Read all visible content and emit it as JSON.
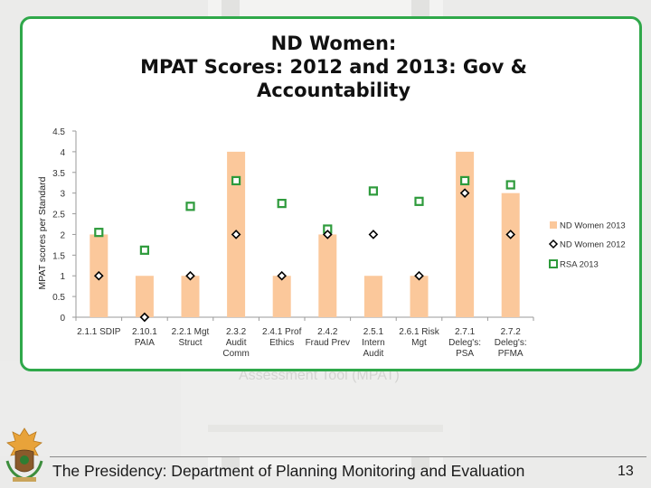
{
  "slide": {
    "footer": "The Presidency: Department of Planning Monitoring and Evaluation",
    "page_number": "13",
    "background_text": "Assessment Tool (MPAT)"
  },
  "colors": {
    "bar": "#fbc89b",
    "marker_2012": "#000000",
    "marker_rsa": "#2e9b3c",
    "border": "#2fa84a"
  },
  "chart_data": {
    "type": "bar",
    "title_lines": [
      "ND Women:",
      "MPAT Scores: 2012 and 2013: Gov &",
      "Accountability"
    ],
    "ylabel": "MPAT scores per Standard",
    "xlabel": "",
    "ylim": [
      0,
      4.5
    ],
    "yticks": [
      "0",
      "0.5",
      "1",
      "1.5",
      "2",
      "2.5",
      "3",
      "3.5",
      "4",
      "4.5"
    ],
    "categories": [
      [
        "2.1.1 SDIP"
      ],
      [
        "2.10.1",
        "PAIA"
      ],
      [
        "2.2.1 Mgt",
        "Struct"
      ],
      [
        "2.3.2",
        "Audit",
        "Comm"
      ],
      [
        "2.4.1 Prof",
        "Ethics"
      ],
      [
        "2.4.2",
        "Fraud Prev"
      ],
      [
        "2.5.1",
        "Intern",
        "Audit"
      ],
      [
        "2.6.1 Risk",
        "Mgt"
      ],
      [
        "2.7.1",
        "Deleg's:",
        "PSA"
      ],
      [
        "2.7.2",
        "Deleg's:",
        "PFMA"
      ]
    ],
    "series": [
      {
        "name": "ND Women 2013",
        "kind": "bar",
        "values": [
          2,
          1,
          1,
          4,
          1,
          2,
          1,
          1,
          4,
          3
        ]
      },
      {
        "name": "ND Women 2012",
        "kind": "diamond",
        "values": [
          1,
          0,
          1,
          2,
          1,
          2,
          2,
          1,
          3,
          2
        ]
      },
      {
        "name": "RSA 2013",
        "kind": "square",
        "values": [
          2.05,
          1.62,
          2.68,
          3.3,
          2.75,
          2.13,
          3.05,
          2.8,
          3.3,
          3.2
        ]
      }
    ],
    "legend_position": "right"
  }
}
